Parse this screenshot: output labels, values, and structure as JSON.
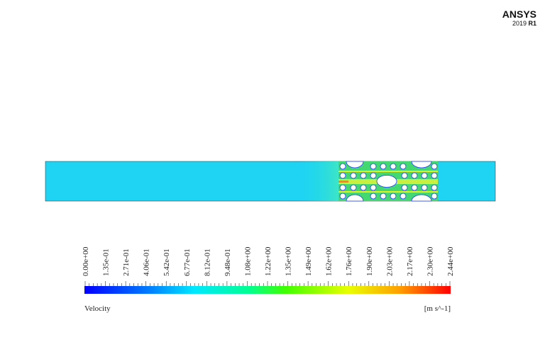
{
  "logo": {
    "brand": "ANSYS",
    "version": "2019",
    "release": "R1"
  },
  "colorbar": {
    "title": "Velocity",
    "unit": "[m s^-1]",
    "ticks": [
      "0.00e+00",
      "1.35e-01",
      "2.71e-01",
      "4.06e-01",
      "5.42e-01",
      "6.77e-01",
      "8.12e-01",
      "9.48e-01",
      "1.08e+00",
      "1.22e+00",
      "1.35e+00",
      "1.49e+00",
      "1.62e+00",
      "1.76e+00",
      "1.90e+00",
      "2.03e+00",
      "2.17e+00",
      "2.30e+00",
      "2.44e+00"
    ]
  }
}
